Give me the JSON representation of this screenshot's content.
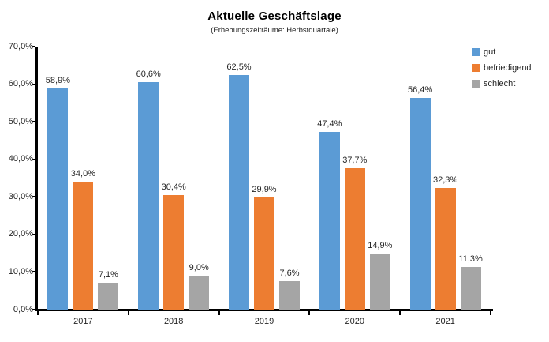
{
  "header": {
    "title": "Aktuelle Geschäftslage",
    "subtitle": "(Erhebungszeiträume: Herbstquartale)"
  },
  "colors": {
    "gut": "#5B9BD5",
    "befriedigend": "#ED7D31",
    "schlecht": "#A5A5A5",
    "axis": "#000000",
    "text": "#262626"
  },
  "chart_data": {
    "type": "bar",
    "title": "Aktuelle Geschäftslage",
    "subtitle": "(Erhebungszeiträume: Herbstquartale)",
    "categories": [
      "2017",
      "2018",
      "2019",
      "2020",
      "2021"
    ],
    "series": [
      {
        "name": "gut",
        "color": "#5B9BD5",
        "values": [
          58.9,
          60.6,
          62.5,
          47.4,
          56.4
        ],
        "labels": [
          "58,9%",
          "60,6%",
          "62,5%",
          "47,4%",
          "56,4%"
        ]
      },
      {
        "name": "befriedigend",
        "color": "#ED7D31",
        "values": [
          34.0,
          30.4,
          29.9,
          37.7,
          32.3
        ],
        "labels": [
          "34,0%",
          "30,4%",
          "29,9%",
          "37,7%",
          "32,3%"
        ]
      },
      {
        "name": "schlecht",
        "color": "#A5A5A5",
        "values": [
          7.1,
          9.0,
          7.6,
          14.9,
          11.3
        ],
        "labels": [
          "7,1%",
          "9,0%",
          "7,6%",
          "14,9%",
          "11,3%"
        ]
      }
    ],
    "xlabel": "",
    "ylabel": "",
    "ylim": [
      0,
      70
    ],
    "ytick_step": 10,
    "ytick_labels": [
      "0,0%",
      "10,0%",
      "20,0%",
      "30,0%",
      "40,0%",
      "50,0%",
      "60,0%",
      "70,0%"
    ],
    "grid": false,
    "legend_position": "top-right"
  }
}
